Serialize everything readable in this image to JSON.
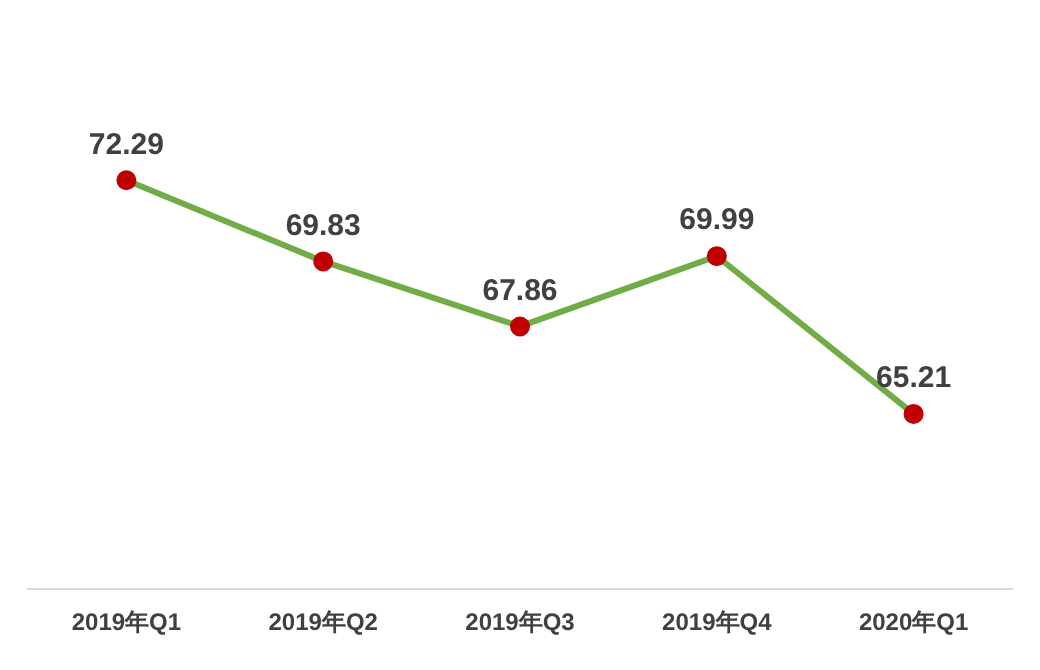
{
  "chart_data": {
    "type": "line",
    "categories": [
      "2019年Q1",
      "2019年Q2",
      "2019年Q3",
      "2019年Q4",
      "2020年Q1"
    ],
    "series": [
      {
        "color": "#70ad47",
        "colors": [
          "#c00000",
          "#c00000",
          "#c00000",
          "#c00000",
          "#c00000"
        ],
        "values": [
          72.29,
          69.83,
          67.86,
          69.99,
          65.21
        ]
      }
    ],
    "data_labels": true,
    "marker": "circle",
    "line_style": "solid",
    "grid": false,
    "legend": false,
    "tick_labels": "x"
  }
}
